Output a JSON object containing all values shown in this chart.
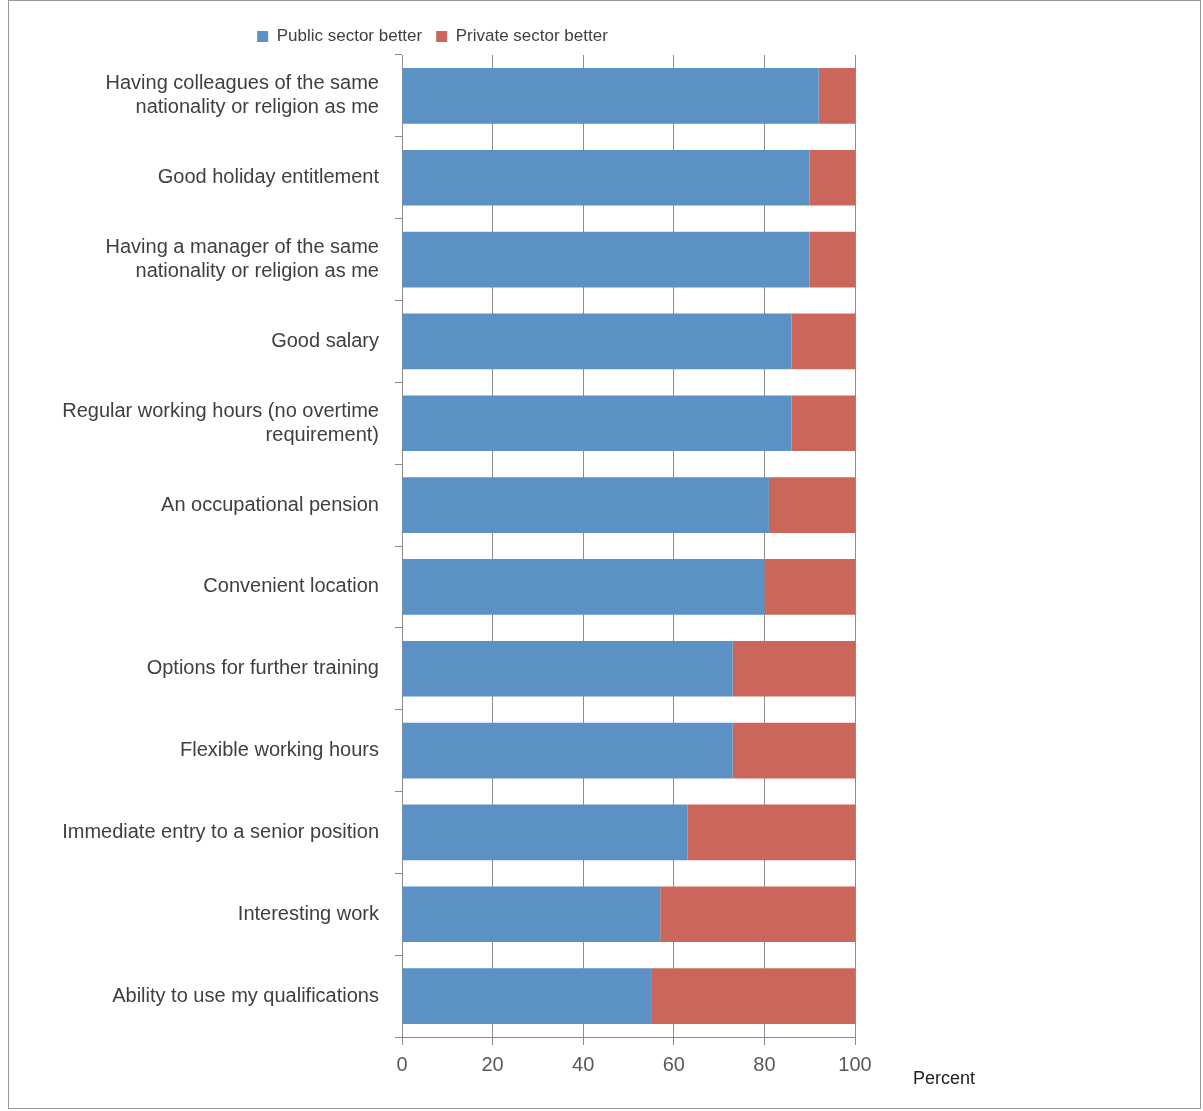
{
  "chart_data": {
    "type": "bar",
    "orientation": "horizontal",
    "stacked": true,
    "xlabel": "Percent",
    "categories": [
      "Having colleagues of the same nationality or religion as me",
      "Good holiday entitlement",
      "Having a manager of the same nationality or religion as me",
      "Good salary",
      "Regular working hours (no overtime requirement)",
      "An occupational pension",
      "Convenient location",
      "Options for further training",
      "Flexible working hours",
      "Immediate entry to a senior position",
      "Interesting work",
      "Ability to use my qualifications"
    ],
    "series": [
      {
        "name": "Public sector better",
        "color": "#5b91c5",
        "values": [
          92,
          90,
          90,
          86,
          86,
          81,
          80,
          73,
          73,
          63,
          57,
          55
        ]
      },
      {
        "name": "Private sector better",
        "color": "#cb665b",
        "values": [
          8,
          10,
          10,
          14,
          14,
          19,
          20,
          27,
          27,
          37,
          43,
          45
        ]
      }
    ],
    "xlim": [
      0,
      100
    ],
    "xticks": [
      0,
      20,
      40,
      60,
      80,
      100
    ],
    "grid": "x",
    "legend": "top"
  }
}
